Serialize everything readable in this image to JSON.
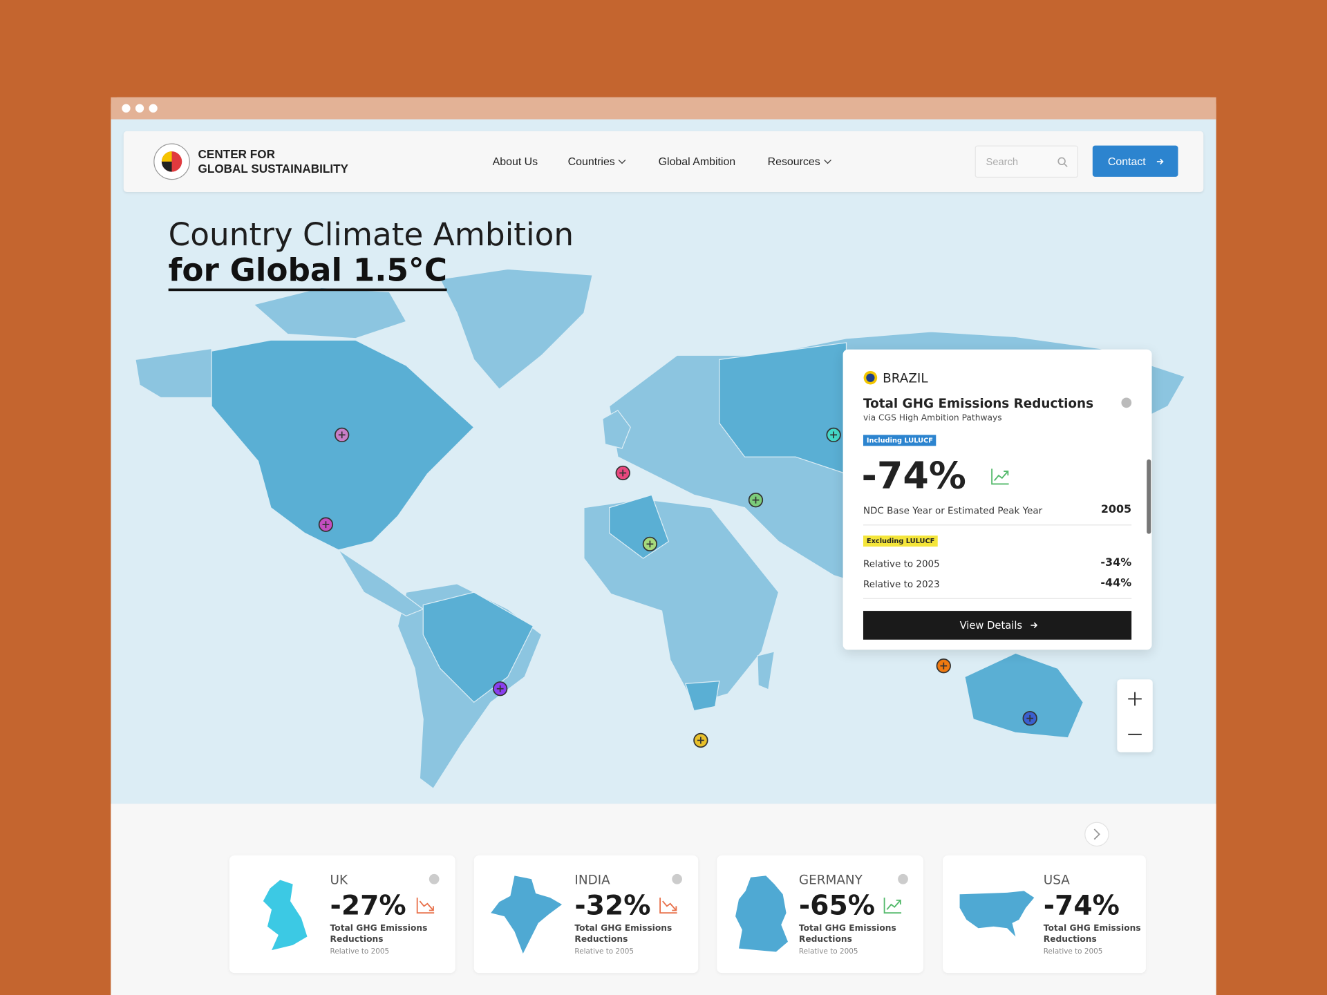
{
  "header": {
    "logo_lines": [
      "CENTER FOR",
      "GLOBAL SUSTAINABILITY"
    ],
    "nav": [
      "About Us",
      "Countries",
      "Global Ambition",
      "Resources"
    ],
    "search": "Search",
    "contact": "Contact"
  },
  "hero": {
    "title_line1": "Country Climate Ambition",
    "title_line2": "for Global 1.5°C"
  },
  "popup": {
    "country": "BRAZIL",
    "title": "Total GHG Emissions Reductions",
    "subtitle": "via CGS High Ambition Pathways",
    "badge_incl": "Including LULUCF",
    "value": "-74%",
    "base_label": "NDC Base Year or Estimated Peak Year",
    "base_value": "2005",
    "badge_excl": "Excluding LULUCF",
    "rows": [
      [
        "Relative to 2005",
        "-34%"
      ],
      [
        "Relative to 2023",
        "-44%"
      ]
    ],
    "button": "View Details"
  },
  "cards": [
    {
      "country": "UK",
      "value": "-27%",
      "label": "Total GHG Emissions Reductions",
      "note": "Relative to 2005"
    },
    {
      "country": "INDIA",
      "value": "-32%",
      "label": "Total GHG Emissions Reductions",
      "note": "Relative to 2005"
    },
    {
      "country": "GERMANY",
      "value": "-65%",
      "label": "Total GHG Emissions Reductions",
      "note": "Relative to 2005"
    },
    {
      "country": "USA",
      "value": "-74%",
      "label": "Total GHG Emissions Reductions",
      "note": "Relative to 2005"
    }
  ]
}
